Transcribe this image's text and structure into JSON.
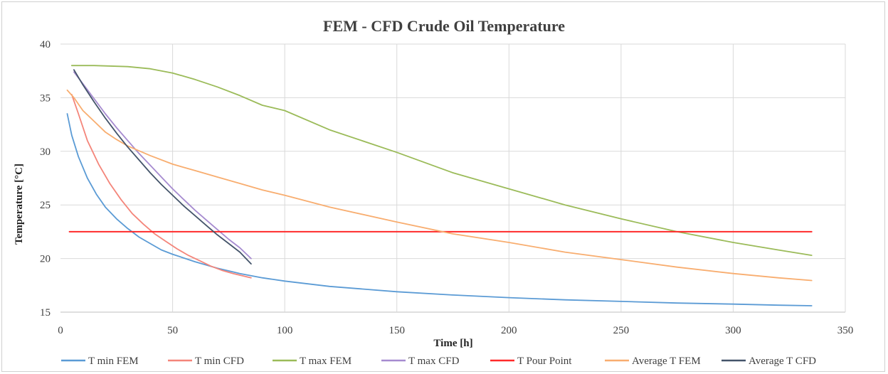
{
  "chart_data": {
    "type": "line",
    "title": "FEM - CFD Crude Oil Temperature",
    "xlabel": "Time [h]",
    "ylabel": "Temperature [°C]",
    "xlim": [
      0,
      350
    ],
    "ylim": [
      15,
      40
    ],
    "x_ticks": [
      0,
      50,
      100,
      150,
      200,
      250,
      300,
      350
    ],
    "y_ticks": [
      15,
      20,
      25,
      30,
      35,
      40
    ],
    "grid": true,
    "legend_position": "bottom",
    "series": [
      {
        "name": "T min FEM",
        "color": "#5b9bd5",
        "points": [
          [
            3,
            33.5
          ],
          [
            5,
            31.5
          ],
          [
            8,
            29.5
          ],
          [
            12,
            27.5
          ],
          [
            16,
            26.0
          ],
          [
            20,
            24.8
          ],
          [
            25,
            23.7
          ],
          [
            30,
            22.8
          ],
          [
            35,
            22.0
          ],
          [
            40,
            21.4
          ],
          [
            45,
            20.8
          ],
          [
            50,
            20.4
          ],
          [
            60,
            19.7
          ],
          [
            70,
            19.1
          ],
          [
            80,
            18.6
          ],
          [
            90,
            18.2
          ],
          [
            100,
            17.9
          ],
          [
            120,
            17.4
          ],
          [
            150,
            16.9
          ],
          [
            175,
            16.6
          ],
          [
            200,
            16.35
          ],
          [
            225,
            16.15
          ],
          [
            250,
            16.0
          ],
          [
            275,
            15.85
          ],
          [
            300,
            15.75
          ],
          [
            320,
            15.65
          ],
          [
            335,
            15.6
          ]
        ]
      },
      {
        "name": "T min CFD",
        "color": "#f4857a",
        "points": [
          [
            5,
            35.3
          ],
          [
            8,
            33.5
          ],
          [
            12,
            31.0
          ],
          [
            17,
            28.8
          ],
          [
            22,
            27.0
          ],
          [
            27,
            25.5
          ],
          [
            32,
            24.2
          ],
          [
            37,
            23.2
          ],
          [
            42,
            22.3
          ],
          [
            47,
            21.6
          ],
          [
            52,
            20.9
          ],
          [
            57,
            20.3
          ],
          [
            62,
            19.8
          ],
          [
            67,
            19.3
          ],
          [
            72,
            18.9
          ],
          [
            77,
            18.6
          ],
          [
            81,
            18.4
          ],
          [
            85,
            18.2
          ]
        ]
      },
      {
        "name": "T max FEM",
        "color": "#9bbb59",
        "points": [
          [
            5,
            38.0
          ],
          [
            15,
            38.0
          ],
          [
            30,
            37.9
          ],
          [
            40,
            37.7
          ],
          [
            50,
            37.3
          ],
          [
            60,
            36.7
          ],
          [
            70,
            36.0
          ],
          [
            80,
            35.2
          ],
          [
            90,
            34.3
          ],
          [
            100,
            33.8
          ],
          [
            120,
            32.0
          ],
          [
            150,
            29.9
          ],
          [
            175,
            28.0
          ],
          [
            200,
            26.5
          ],
          [
            225,
            25.0
          ],
          [
            250,
            23.7
          ],
          [
            275,
            22.5
          ],
          [
            300,
            21.5
          ],
          [
            320,
            20.8
          ],
          [
            335,
            20.3
          ]
        ]
      },
      {
        "name": "T max CFD",
        "color": "#a68bd0",
        "points": [
          [
            6,
            37.4
          ],
          [
            10,
            36.3
          ],
          [
            15,
            34.9
          ],
          [
            20,
            33.5
          ],
          [
            25,
            32.2
          ],
          [
            30,
            31.0
          ],
          [
            35,
            29.8
          ],
          [
            40,
            28.7
          ],
          [
            45,
            27.6
          ],
          [
            50,
            26.5
          ],
          [
            55,
            25.5
          ],
          [
            60,
            24.5
          ],
          [
            65,
            23.6
          ],
          [
            70,
            22.7
          ],
          [
            75,
            21.8
          ],
          [
            80,
            21.0
          ],
          [
            85,
            20.0
          ]
        ]
      },
      {
        "name": "T Pour Point",
        "color": "#ff2a2a",
        "points": [
          [
            4,
            22.5
          ],
          [
            335,
            22.5
          ]
        ]
      },
      {
        "name": "Average T FEM",
        "color": "#f8ad6f",
        "points": [
          [
            3,
            35.7
          ],
          [
            6,
            35.0
          ],
          [
            10,
            33.8
          ],
          [
            15,
            32.8
          ],
          [
            20,
            31.8
          ],
          [
            25,
            31.1
          ],
          [
            30,
            30.5
          ],
          [
            40,
            29.6
          ],
          [
            50,
            28.8
          ],
          [
            60,
            28.2
          ],
          [
            70,
            27.6
          ],
          [
            80,
            27.0
          ],
          [
            90,
            26.4
          ],
          [
            100,
            25.9
          ],
          [
            120,
            24.8
          ],
          [
            150,
            23.4
          ],
          [
            175,
            22.3
          ],
          [
            200,
            21.5
          ],
          [
            225,
            20.6
          ],
          [
            250,
            19.9
          ],
          [
            275,
            19.2
          ],
          [
            300,
            18.6
          ],
          [
            320,
            18.2
          ],
          [
            335,
            17.95
          ]
        ]
      },
      {
        "name": "Average T CFD",
        "color": "#44546a",
        "points": [
          [
            6,
            37.6
          ],
          [
            10,
            36.2
          ],
          [
            15,
            34.6
          ],
          [
            20,
            33.1
          ],
          [
            25,
            31.7
          ],
          [
            30,
            30.4
          ],
          [
            35,
            29.2
          ],
          [
            40,
            28.0
          ],
          [
            45,
            26.9
          ],
          [
            50,
            25.9
          ],
          [
            55,
            24.9
          ],
          [
            60,
            24.0
          ],
          [
            65,
            23.1
          ],
          [
            70,
            22.2
          ],
          [
            75,
            21.4
          ],
          [
            80,
            20.6
          ],
          [
            85,
            19.5
          ]
        ]
      }
    ]
  }
}
